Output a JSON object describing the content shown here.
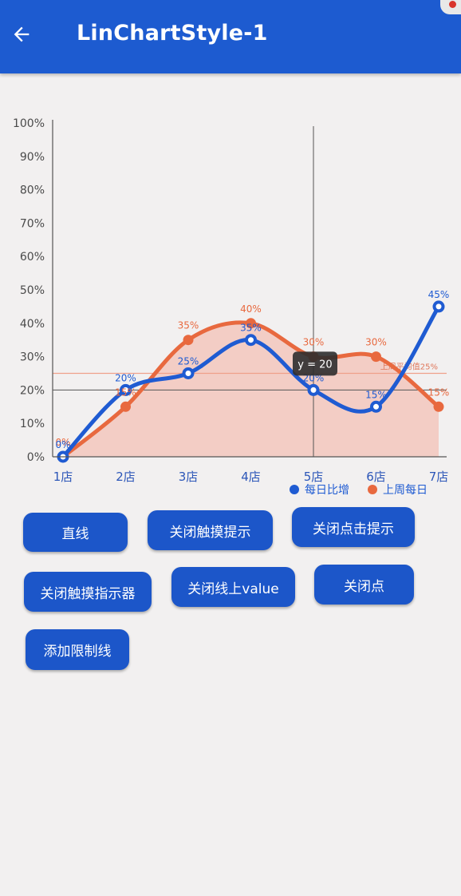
{
  "appbar": {
    "title": "LinChartStyle-1",
    "back_icon": "arrow-back-icon",
    "color": "#1d5bd0"
  },
  "chart_data": {
    "type": "area",
    "categories": [
      "1店",
      "2店",
      "3店",
      "4店",
      "5店",
      "6店",
      "7店"
    ],
    "ylim": [
      0,
      100
    ],
    "yticks": [
      "0%",
      "10%",
      "20%",
      "30%",
      "40%",
      "50%",
      "60%",
      "70%",
      "80%",
      "90%",
      "100%"
    ],
    "series": [
      {
        "name": "每日比增",
        "values": [
          0,
          20,
          25,
          35,
          20,
          15,
          45
        ],
        "labels": [
          "0%",
          "20%",
          "25%",
          "35%",
          "20%",
          "15%",
          "45%"
        ],
        "color": "#1f5bd2",
        "style": "hollow-points"
      },
      {
        "name": "上周每日",
        "values": [
          0,
          15,
          35,
          40,
          30,
          30,
          15
        ],
        "labels": [
          "0%",
          "15%",
          "35%",
          "40%",
          "30%",
          "30%",
          "15%"
        ],
        "color": "#e8693f",
        "fill": "#f3c7bd",
        "style": "filled-points"
      }
    ],
    "limit_line": {
      "value": 25,
      "label": "上周平均值25%",
      "color": "#f0a08a"
    },
    "crosshair": {
      "category_index": 4,
      "y": 20,
      "label": "y = 20"
    },
    "legend": "bottom-right"
  },
  "buttons": {
    "straight": "直线",
    "close_touch_tip": "关闭触摸提示",
    "close_click_tip": "关闭点击提示",
    "close_touch_indicator": "关闭触摸指示器",
    "close_line_value": "关闭线上value",
    "close_points": "关闭点",
    "add_limit_line": "添加限制线"
  }
}
